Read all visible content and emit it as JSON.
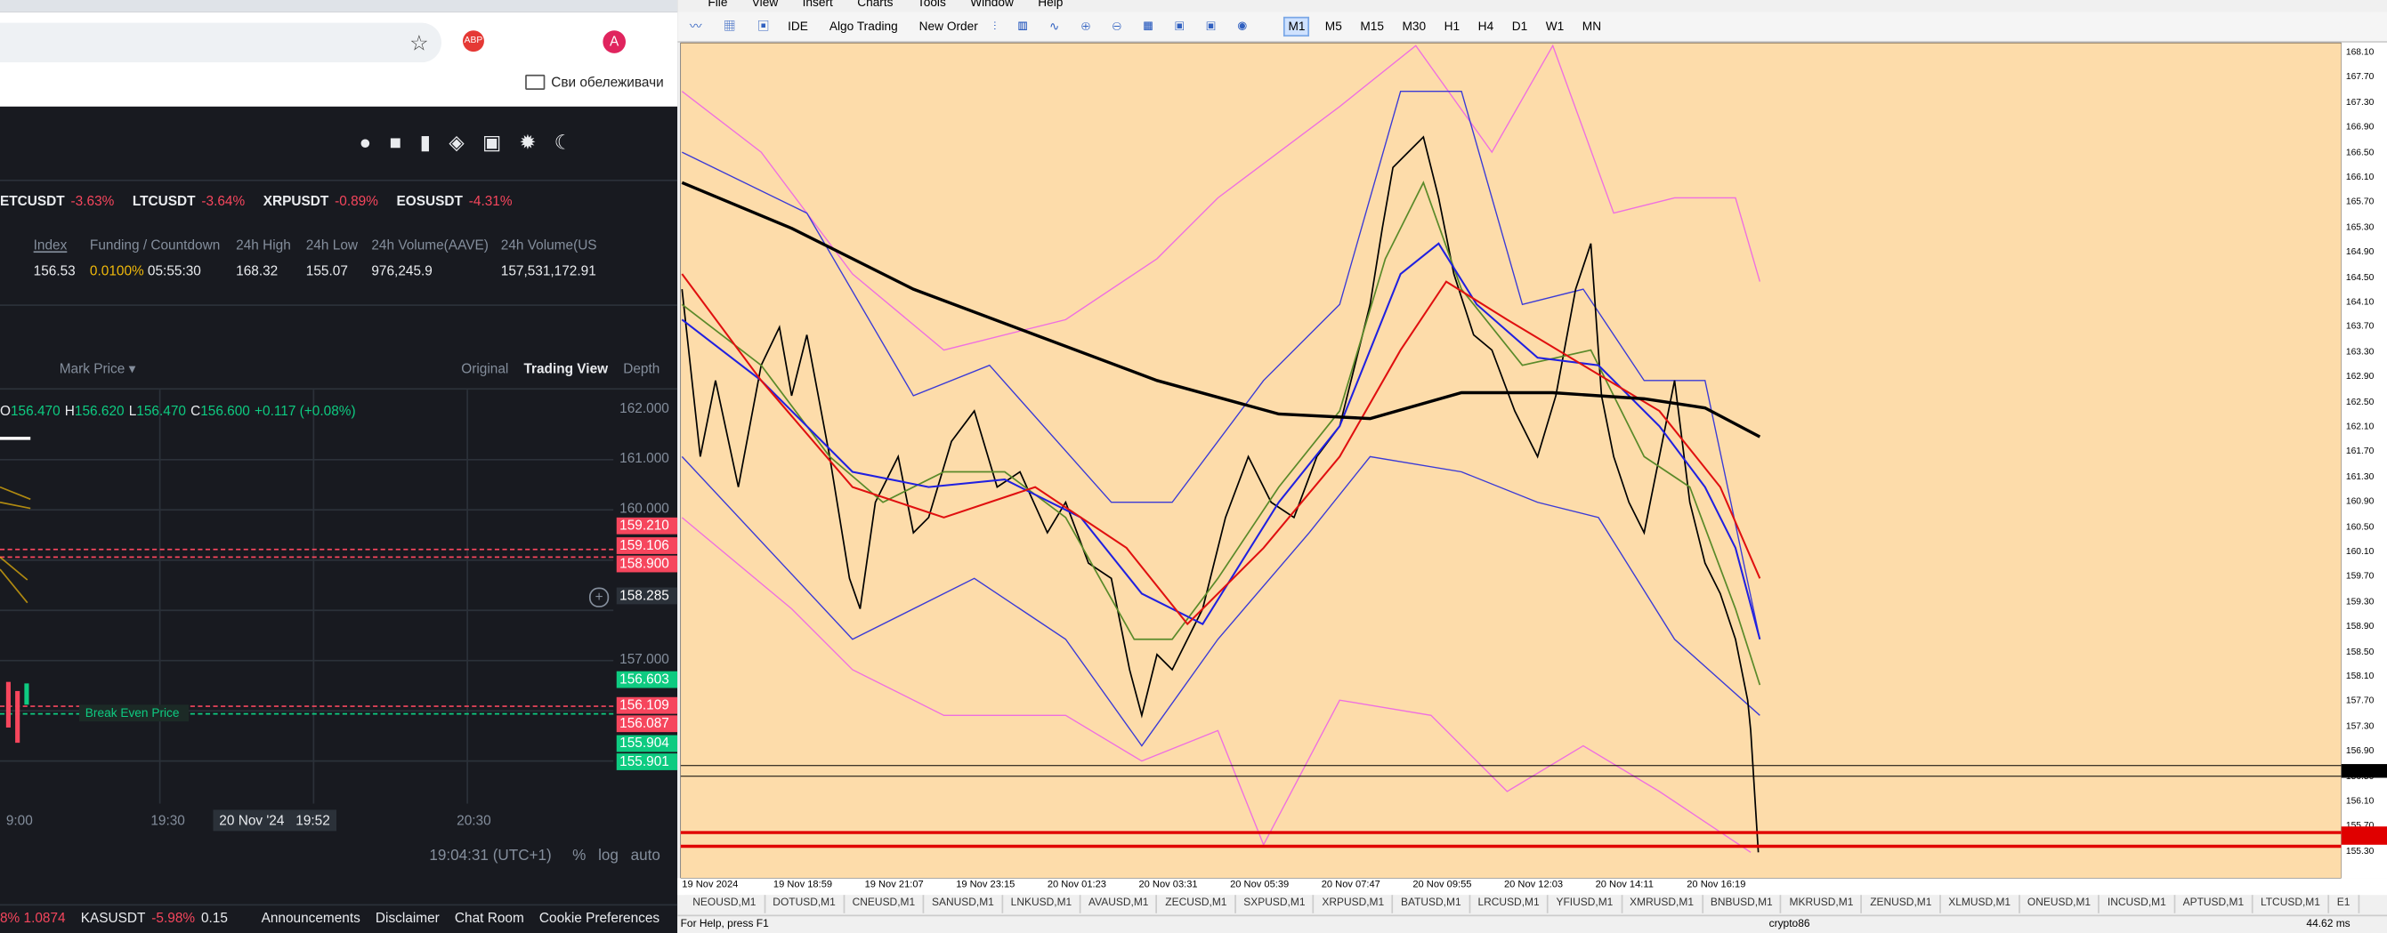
{
  "browser": {
    "bookmarks": "Сви обележивачи"
  },
  "exchange": {
    "tickers": [
      {
        "symbol": "ETCUSDT",
        "change": "-3.63%"
      },
      {
        "symbol": "LTCUSDT",
        "change": "-3.64%"
      },
      {
        "symbol": "XRPUSDT",
        "change": "-0.89%"
      },
      {
        "symbol": "EOSUSDT",
        "change": "-4.31%"
      }
    ],
    "stats": [
      {
        "label": "Index",
        "value": "156.53"
      },
      {
        "label": "Funding / Countdown",
        "value": "0.0100%",
        "value2": "05:55:30"
      },
      {
        "label": "24h High",
        "value": "168.32"
      },
      {
        "label": "24h Low",
        "value": "155.07"
      },
      {
        "label": "24h Volume(AAVE)",
        "value": "976,245.9"
      },
      {
        "label": "24h Volume(US",
        "value": "157,531,172.91"
      }
    ],
    "price_type": "Mark Price",
    "views": [
      "Original",
      "Trading View",
      "Depth"
    ],
    "ohlc": [
      "O",
      "156.470",
      "H",
      "156.620",
      "L",
      "156.470",
      "C",
      "156.600",
      "+0.117 (+0.08%)"
    ],
    "price_labels": [
      {
        "label": "162.000",
        "color": ""
      },
      {
        "label": "161.000",
        "color": ""
      },
      {
        "label": "160.000",
        "color": ""
      },
      {
        "label": "159.210",
        "color": "#f6465d"
      },
      {
        "label": "159.106",
        "color": "#f6465d"
      },
      {
        "label": "158.900",
        "color": "#f6465d"
      },
      {
        "label": "158.285",
        "color": "#2b3139"
      },
      {
        "label": "157.000",
        "color": ""
      },
      {
        "label": "156.603",
        "color": "#0ecb81"
      },
      {
        "label": "156.109",
        "color": "#f6465d"
      },
      {
        "label": "156.087",
        "color": "#f6465d"
      },
      {
        "label": "155.904",
        "color": "#0ecb81"
      },
      {
        "label": "155.901",
        "color": "#0ecb81"
      }
    ],
    "break_even": "Break Even Price",
    "time_labels": [
      "9:00",
      "19:30",
      "20 Nov '24   19:52",
      "20:30"
    ],
    "clock": "19:04:31 (UTC+1)",
    "scale_options": [
      "%",
      "log",
      "auto"
    ],
    "footer": {
      "ticker1": "8%  1.0874",
      "ticker2_symbol": "KASUSDT",
      "ticker2_change": "-5.98%",
      "ticker2_price": "0.15",
      "links": [
        "Announcements",
        "Disclaimer",
        "Chat Room",
        "Cookie Preferences"
      ]
    }
  },
  "terminal": {
    "menu": [
      "File",
      "View",
      "Insert",
      "Charts",
      "Tools",
      "Window",
      "Help"
    ],
    "toolbar": [
      "IDE",
      "Algo Trading",
      "New Order"
    ],
    "timeframes": [
      "M1",
      "M5",
      "M15",
      "M30",
      "H1",
      "H4",
      "D1",
      "W1",
      "MN"
    ],
    "price_axis": [
      "168.10",
      "167.70",
      "167.30",
      "166.90",
      "166.50",
      "166.10",
      "165.70",
      "165.30",
      "164.90",
      "164.50",
      "164.10",
      "163.70",
      "163.30",
      "162.90",
      "162.50",
      "162.10",
      "161.70",
      "161.30",
      "160.90",
      "160.50",
      "160.10",
      "159.70",
      "159.30",
      "158.90",
      "158.50",
      "158.10",
      "157.70",
      "157.30",
      "156.90",
      "156.50",
      "156.10",
      "155.70",
      "155.30"
    ],
    "time_axis": [
      "19 Nov 2024",
      "19 Nov 18:59",
      "19 Nov 21:07",
      "19 Nov 23:15",
      "20 Nov 01:23",
      "20 Nov 03:31",
      "20 Nov 05:39",
      "20 Nov 07:47",
      "20 Nov 09:55",
      "20 Nov 12:03",
      "20 Nov 14:11",
      "20 Nov 16:19"
    ],
    "tabs": [
      "NEOUSD,M1",
      "DOTUSD,M1",
      "CNEUSD,M1",
      "SANUSD,M1",
      "LNKUSD,M1",
      "AVAUSD,M1",
      "ZECUSD,M1",
      "SXPUSD,M1",
      "XRPUSD,M1",
      "BATUSD,M1",
      "LRCUSD,M1",
      "YFIUSD,M1",
      "XMRUSD,M1",
      "BNBUSD,M1",
      "MKRUSD,M1",
      "ZENUSD,M1",
      "XLMUSD,M1",
      "ONEUSD,M1",
      "INCUSD,M1",
      "APTUSD,M1",
      "LTCUSD,M1",
      "E1"
    ],
    "status": {
      "help": "For Help, press F1",
      "profile": "crypto86",
      "ping": "44.62 ms"
    }
  }
}
